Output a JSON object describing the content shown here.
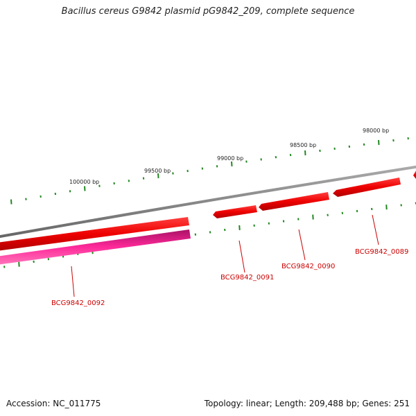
{
  "title": "Bacillus cereus G9842 plasmid pG9842_209, complete sequence",
  "footer": {
    "accession": "Accession: NC_011775",
    "summary": "Topology: linear; Length: 209,488 bp; Genes: 251"
  },
  "scale_labels": [
    "100000 bp",
    "99500 bp",
    "99000 bp",
    "98500 bp",
    "98000 bp"
  ],
  "gene_labels": [
    "BCG9842_0092",
    "BCG9842_0091",
    "BCG9842_0090",
    "BCG9842_0089"
  ],
  "colors": {
    "backbone": "#888888",
    "gene_forward": "#ee0000",
    "gene_highlight": "#ff3399",
    "ticks": "#228822",
    "label": "#cc0000"
  }
}
